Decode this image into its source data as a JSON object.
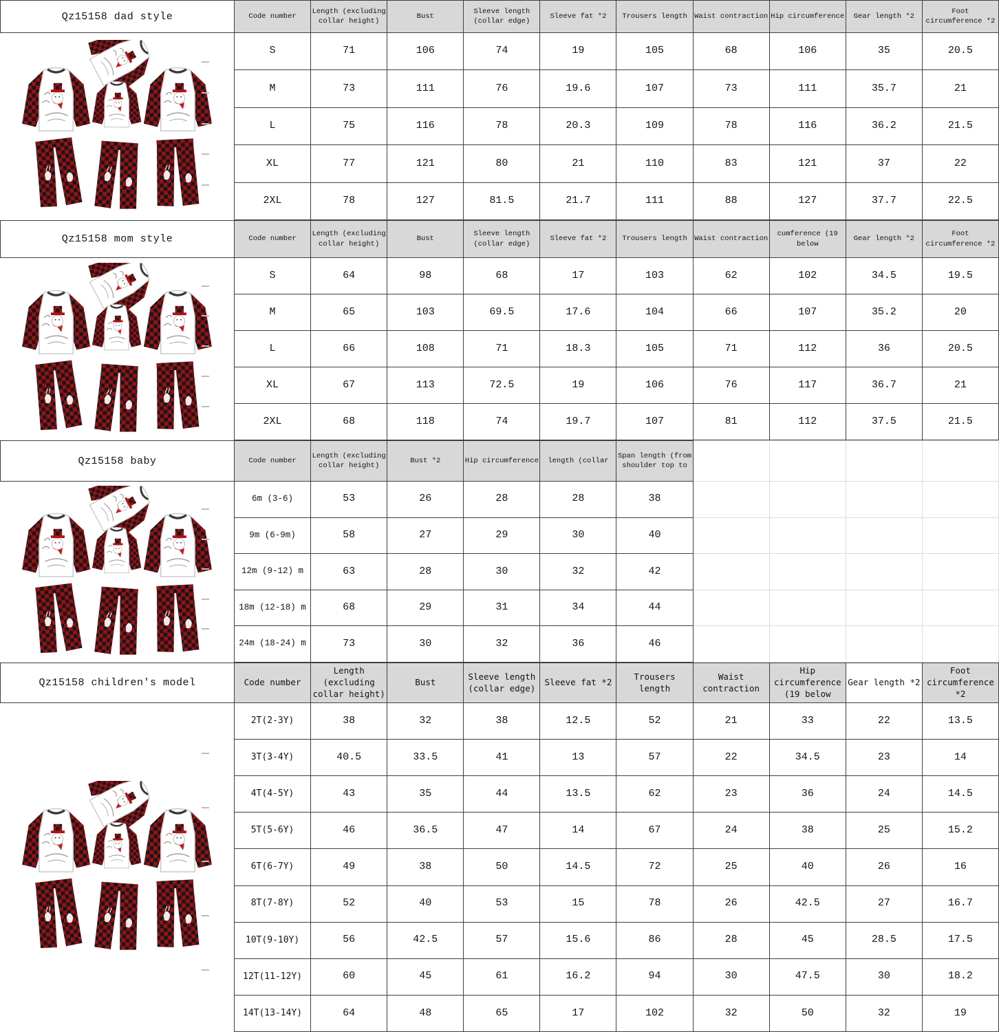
{
  "page": {
    "kind": "family matching pajamas size chart",
    "style_code": "Qz15158"
  },
  "colors": {
    "header_bg": "#d8d8d8",
    "border_dark": "#3f3f3f",
    "border_light": "#dcdcdc",
    "plaid_red": "#c4191e",
    "plaid_dark": "#1c1416",
    "plaid_mid": "#8f1317",
    "text": "#141414"
  },
  "sections": [
    {
      "title": "Qz15158 dad style",
      "header": [
        "Code number",
        "Length (excluding collar height)",
        "Bust",
        "Sleeve length (collar edge)",
        "Sleeve fat *2",
        "Trousers length",
        "Waist contraction",
        "Hip circumference",
        "Gear length *2",
        "Foot circumference *2"
      ],
      "rows": [
        [
          "S",
          "71",
          "106",
          "74",
          "19",
          "105",
          "68",
          "106",
          "35",
          "20.5"
        ],
        [
          "M",
          "73",
          "111",
          "76",
          "19.6",
          "107",
          "73",
          "111",
          "35.7",
          "21"
        ],
        [
          "L",
          "75",
          "116",
          "78",
          "20.3",
          "109",
          "78",
          "116",
          "36.2",
          "21.5"
        ],
        [
          "XL",
          "77",
          "121",
          "80",
          "21",
          "110",
          "83",
          "121",
          "37",
          "22"
        ],
        [
          "2XL",
          "78",
          "127",
          "81.5",
          "21.7",
          "111",
          "88",
          "127",
          "37.7",
          "22.5"
        ]
      ]
    },
    {
      "title": "Qz15158 mom style",
      "header": [
        "Code number",
        "Length (excluding collar height)",
        "Bust",
        "Sleeve length (collar edge)",
        "Sleeve fat *2",
        "Trousers length",
        "Waist contraction",
        "cumference (19 below",
        "Gear length *2",
        "Foot circumference *2"
      ],
      "rows": [
        [
          "S",
          "64",
          "98",
          "68",
          "17",
          "103",
          "62",
          "102",
          "34.5",
          "19.5"
        ],
        [
          "M",
          "65",
          "103",
          "69.5",
          "17.6",
          "104",
          "66",
          "107",
          "35.2",
          "20"
        ],
        [
          "L",
          "66",
          "108",
          "71",
          "18.3",
          "105",
          "71",
          "112",
          "36",
          "20.5"
        ],
        [
          "XL",
          "67",
          "113",
          "72.5",
          "19",
          "106",
          "76",
          "117",
          "36.7",
          "21"
        ],
        [
          "2XL",
          "68",
          "118",
          "74",
          "19.7",
          "107",
          "81",
          "112",
          "37.5",
          "21.5"
        ]
      ]
    },
    {
      "title": "Qz15158 baby",
      "header": [
        "Code number",
        "Length (excluding collar height)",
        "Bust *2",
        "Hip circumference",
        "length (collar",
        "Span length (from shoulder top to"
      ],
      "rows": [
        [
          "6m (3-6)",
          "53",
          "26",
          "28",
          "28",
          "38"
        ],
        [
          "9m (6-9m)",
          "58",
          "27",
          "29",
          "30",
          "40"
        ],
        [
          "12m (9-12) m",
          "63",
          "28",
          "30",
          "32",
          "42"
        ],
        [
          "18m (12-18) m",
          "68",
          "29",
          "31",
          "34",
          "44"
        ],
        [
          "24m (18-24) m",
          "73",
          "30",
          "32",
          "36",
          "46"
        ]
      ]
    },
    {
      "title": "Qz15158 children's model",
      "header": [
        "Code number",
        "Length (excluding collar height)",
        "Bust",
        "Sleeve length (collar edge)",
        "Sleeve fat *2",
        "Trousers length",
        "Waist contraction",
        "Hip circumference (19 below",
        "Gear length *2",
        "Foot circumference *2"
      ],
      "rows": [
        [
          "2T(2-3Y)",
          "38",
          "32",
          "38",
          "12.5",
          "52",
          "21",
          "33",
          "22",
          "13.5"
        ],
        [
          "3T(3-4Y)",
          "40.5",
          "33.5",
          "41",
          "13",
          "57",
          "22",
          "34.5",
          "23",
          "14"
        ],
        [
          "4T(4-5Y)",
          "43",
          "35",
          "44",
          "13.5",
          "62",
          "23",
          "36",
          "24",
          "14.5"
        ],
        [
          "5T(5-6Y)",
          "46",
          "36.5",
          "47",
          "14",
          "67",
          "24",
          "38",
          "25",
          "15.2"
        ],
        [
          "6T(6-7Y)",
          "49",
          "38",
          "50",
          "14.5",
          "72",
          "25",
          "40",
          "26",
          "16"
        ],
        [
          "8T(7-8Y)",
          "52",
          "40",
          "53",
          "15",
          "78",
          "26",
          "42.5",
          "27",
          "16.7"
        ],
        [
          "10T(9-10Y)",
          "56",
          "42.5",
          "57",
          "15.6",
          "86",
          "28",
          "45",
          "28.5",
          "17.5"
        ],
        [
          "12T(11-12Y)",
          "60",
          "45",
          "61",
          "16.2",
          "94",
          "30",
          "47.5",
          "30",
          "18.2"
        ],
        [
          "14T(13-14Y)",
          "64",
          "48",
          "65",
          "17",
          "102",
          "32",
          "50",
          "32",
          "19"
        ]
      ]
    }
  ]
}
